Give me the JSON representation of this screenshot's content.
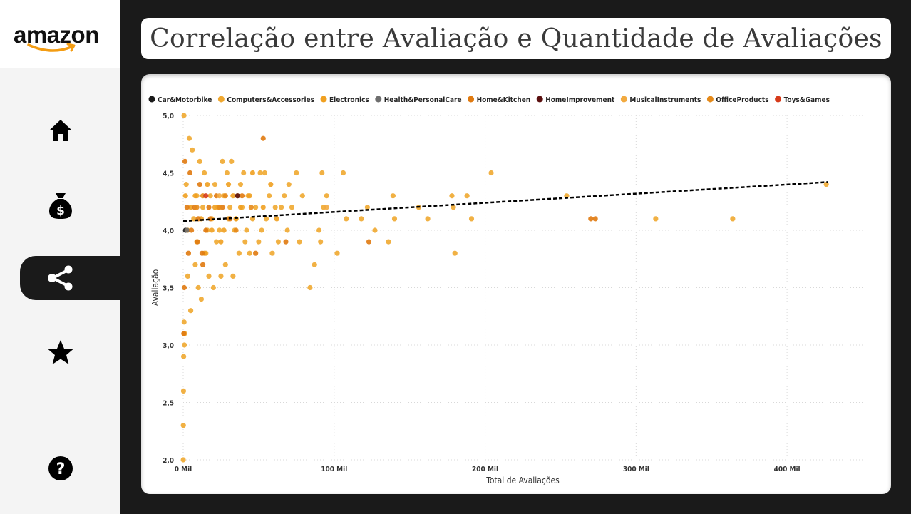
{
  "app": {
    "logo_text": "amazon",
    "title": "Correlação entre Avaliação e Quantidade de Avaliações"
  },
  "sidebar": {
    "items": [
      {
        "name": "home",
        "icon": "home-icon",
        "active": false
      },
      {
        "name": "money",
        "icon": "money-bag-icon",
        "active": false
      },
      {
        "name": "correlation",
        "icon": "share-nodes-icon",
        "active": true
      },
      {
        "name": "ratings",
        "icon": "star-icon",
        "active": false
      },
      {
        "name": "help",
        "icon": "question-circle-icon",
        "active": false
      }
    ]
  },
  "colors": {
    "page_bg": "#1a1a1a",
    "sidebar_bg": "#f4f4f4",
    "card_bg": "#ffffff",
    "logo_smile": "#f39c12"
  },
  "chart_data": {
    "type": "scatter",
    "title": "",
    "xlabel": "Total de Avaliações",
    "ylabel": "Avaliação",
    "xlim": [
      0,
      450000
    ],
    "ylim": [
      2.0,
      5.0
    ],
    "x_ticks": [
      {
        "value": 0,
        "label": "0 Mil"
      },
      {
        "value": 100000,
        "label": "100 Mil"
      },
      {
        "value": 200000,
        "label": "200 Mil"
      },
      {
        "value": 300000,
        "label": "300 Mil"
      },
      {
        "value": 400000,
        "label": "400 Mil"
      }
    ],
    "y_ticks": [
      {
        "value": 2.0,
        "label": "2,0"
      },
      {
        "value": 2.5,
        "label": "2,5"
      },
      {
        "value": 3.0,
        "label": "3,0"
      },
      {
        "value": 3.5,
        "label": "3,5"
      },
      {
        "value": 4.0,
        "label": "4,0"
      },
      {
        "value": 4.5,
        "label": "4,5"
      },
      {
        "value": 5.0,
        "label": "5,0"
      }
    ],
    "grid": true,
    "legend_position": "top-left",
    "trendline": {
      "x": [
        0,
        427000
      ],
      "y": [
        4.08,
        4.42
      ]
    },
    "series": [
      {
        "name": "Car&Motorbike",
        "color": "#1a1a1a",
        "points": [
          [
            1500,
            4.0
          ]
        ]
      },
      {
        "name": "Computers&Accessories",
        "color": "#f0a830",
        "points": [
          [
            426000,
            4.4
          ],
          [
            364000,
            4.1
          ],
          [
            313000,
            4.1
          ],
          [
            254000,
            4.3
          ],
          [
            204000,
            4.5
          ],
          [
            191000,
            4.1
          ],
          [
            188000,
            4.3
          ],
          [
            178000,
            4.3
          ],
          [
            179000,
            4.2
          ],
          [
            180000,
            3.8
          ],
          [
            162000,
            4.1
          ],
          [
            156000,
            4.2
          ],
          [
            140000,
            4.1
          ],
          [
            139000,
            4.3
          ],
          [
            136000,
            3.9
          ],
          [
            127000,
            4.0
          ],
          [
            122000,
            4.2
          ],
          [
            118000,
            4.1
          ],
          [
            108000,
            4.1
          ],
          [
            106000,
            4.5
          ],
          [
            102000,
            3.8
          ],
          [
            95000,
            4.3
          ],
          [
            93000,
            4.2
          ],
          [
            92000,
            4.5
          ],
          [
            91000,
            3.9
          ],
          [
            90000,
            4.0
          ],
          [
            87000,
            3.7
          ],
          [
            84000,
            3.5
          ],
          [
            79000,
            4.3
          ],
          [
            77000,
            3.9
          ],
          [
            75000,
            4.5
          ],
          [
            72000,
            4.2
          ],
          [
            70000,
            4.4
          ],
          [
            69000,
            4.0
          ],
          [
            67000,
            4.3
          ],
          [
            65000,
            4.2
          ],
          [
            63000,
            3.9
          ],
          [
            61000,
            4.2
          ],
          [
            59000,
            3.8
          ],
          [
            57000,
            4.3
          ],
          [
            55000,
            4.1
          ],
          [
            54000,
            4.5
          ],
          [
            52000,
            4.0
          ],
          [
            51000,
            4.5
          ],
          [
            50000,
            3.9
          ],
          [
            48000,
            4.2
          ],
          [
            46000,
            4.1
          ],
          [
            44000,
            3.8
          ],
          [
            43000,
            4.3
          ],
          [
            42000,
            4.0
          ],
          [
            41000,
            3.9
          ],
          [
            40000,
            4.5
          ],
          [
            39000,
            4.2
          ],
          [
            38000,
            4.4
          ],
          [
            37000,
            3.8
          ],
          [
            36000,
            4.3
          ],
          [
            35000,
            4.1
          ],
          [
            34000,
            4.0
          ],
          [
            33000,
            3.6
          ],
          [
            32000,
            4.6
          ],
          [
            31000,
            4.2
          ],
          [
            30000,
            4.1
          ],
          [
            29000,
            4.5
          ],
          [
            28000,
            3.7
          ],
          [
            27000,
            4.3
          ],
          [
            26000,
            4.6
          ],
          [
            25000,
            3.6
          ],
          [
            24000,
            4.0
          ],
          [
            23000,
            4.2
          ],
          [
            22000,
            3.9
          ],
          [
            21000,
            4.4
          ],
          [
            20000,
            3.5
          ],
          [
            19000,
            4.1
          ],
          [
            18000,
            4.3
          ],
          [
            17000,
            3.6
          ],
          [
            16000,
            4.0
          ],
          [
            15000,
            3.8
          ],
          [
            14000,
            4.5
          ],
          [
            13000,
            4.2
          ],
          [
            12000,
            3.4
          ],
          [
            11000,
            4.6
          ],
          [
            10000,
            3.5
          ],
          [
            9000,
            4.3
          ],
          [
            8000,
            3.7
          ],
          [
            7000,
            4.1
          ],
          [
            6000,
            4.7
          ],
          [
            5000,
            3.3
          ],
          [
            4000,
            4.8
          ],
          [
            3000,
            3.6
          ],
          [
            2000,
            4.4
          ],
          [
            1000,
            3.1
          ],
          [
            500,
            5.0
          ],
          [
            300,
            2.9
          ],
          [
            200,
            2.6
          ],
          [
            100,
            2.3
          ],
          [
            50,
            2.0
          ],
          [
            600,
            3.2
          ],
          [
            800,
            3.0
          ]
        ]
      },
      {
        "name": "Electronics",
        "color": "#f0a020",
        "points": [
          [
            46000,
            4.5
          ],
          [
            58000,
            4.4
          ],
          [
            62000,
            4.1
          ],
          [
            38000,
            4.2
          ],
          [
            33000,
            4.3
          ],
          [
            27000,
            4.0
          ],
          [
            21000,
            4.2
          ],
          [
            16000,
            4.4
          ],
          [
            12000,
            4.1
          ],
          [
            8000,
            4.3
          ],
          [
            5000,
            4.2
          ],
          [
            3000,
            4.0
          ],
          [
            1500,
            4.3
          ],
          [
            9000,
            3.9
          ],
          [
            14000,
            3.8
          ],
          [
            19000,
            4.0
          ],
          [
            25000,
            3.9
          ],
          [
            30000,
            4.4
          ],
          [
            35000,
            4.1
          ],
          [
            44000,
            4.3
          ],
          [
            53000,
            4.2
          ]
        ]
      },
      {
        "name": "Health&PersonalCare",
        "color": "#6e6e6e",
        "points": [
          [
            2500,
            4.0
          ]
        ]
      },
      {
        "name": "Home&Kitchen",
        "color": "#e07a10",
        "points": [
          [
            53000,
            4.8
          ],
          [
            123000,
            3.9
          ],
          [
            270000,
            4.1
          ],
          [
            273000,
            4.1
          ],
          [
            68000,
            3.9
          ],
          [
            48000,
            3.8
          ],
          [
            39000,
            4.3
          ],
          [
            31000,
            4.1
          ],
          [
            26000,
            4.2
          ],
          [
            22000,
            4.3
          ],
          [
            18000,
            4.1
          ],
          [
            15000,
            4.0
          ],
          [
            13000,
            3.7
          ],
          [
            11000,
            4.4
          ],
          [
            9500,
            3.9
          ],
          [
            7500,
            4.2
          ],
          [
            5500,
            4.0
          ],
          [
            4500,
            4.5
          ],
          [
            3500,
            3.8
          ],
          [
            2500,
            4.2
          ],
          [
            1200,
            4.6
          ],
          [
            700,
            3.5
          ],
          [
            400,
            3.1
          ],
          [
            10000,
            4.1
          ],
          [
            12500,
            3.8
          ],
          [
            17000,
            4.2
          ]
        ]
      },
      {
        "name": "HomeImprovement",
        "color": "#5a0f0f",
        "points": [
          [
            36000,
            4.3
          ]
        ]
      },
      {
        "name": "MusicalInstruments",
        "color": "#f2aa40",
        "points": [
          [
            95000,
            4.2
          ],
          [
            24000,
            4.3
          ]
        ]
      },
      {
        "name": "OfficeProducts",
        "color": "#e58a1a",
        "points": [
          [
            24000,
            4.2
          ],
          [
            28000,
            4.3
          ],
          [
            45000,
            4.2
          ],
          [
            35000,
            4.0
          ],
          [
            9000,
            4.2
          ],
          [
            13000,
            4.3
          ]
        ]
      },
      {
        "name": "Toys&Games",
        "color": "#d63a1a",
        "points": [
          [
            15000,
            4.3
          ]
        ]
      }
    ]
  }
}
